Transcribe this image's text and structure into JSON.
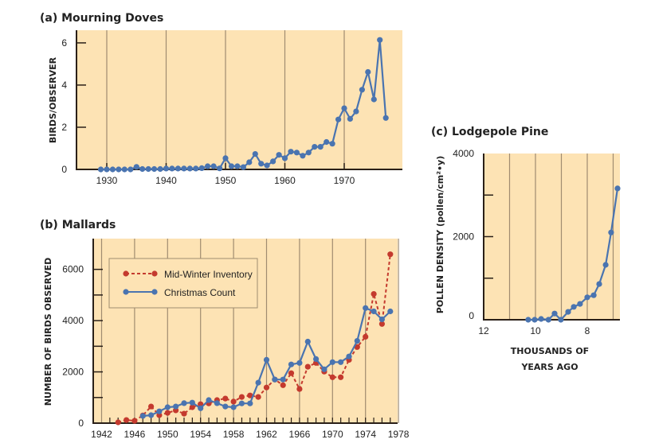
{
  "colors": {
    "background": "#FDE3B4",
    "gridline": "#A08C70",
    "axis": "#2a2018",
    "blue": "#4A74B0",
    "red": "#C43A2E"
  },
  "chart_data": [
    {
      "id": "a",
      "type": "line",
      "title": "(a) Mourning Doves",
      "xlabel": "",
      "ylabel": "BIRDS/OBSERVER",
      "xlim": [
        1925,
        1980
      ],
      "ylim": [
        0,
        6.6
      ],
      "xticks": [
        1930,
        1940,
        1950,
        1960,
        1970
      ],
      "xtick_labels": [
        "1930",
        "1940",
        "1950",
        "1960",
        "1970"
      ],
      "yticks": [
        0,
        2,
        4,
        6
      ],
      "ytick_labels": [
        "0",
        "2",
        "4",
        "6"
      ],
      "grid": "vertical",
      "series": [
        {
          "name": "Mourning Doves",
          "color": "blue",
          "style": "solid",
          "x": [
            1929,
            1930,
            1931,
            1932,
            1933,
            1934,
            1935,
            1936,
            1937,
            1938,
            1939,
            1940,
            1941,
            1942,
            1943,
            1944,
            1945,
            1946,
            1947,
            1948,
            1949,
            1950,
            1951,
            1952,
            1953,
            1954,
            1955,
            1956,
            1957,
            1958,
            1959,
            1960,
            1961,
            1962,
            1963,
            1964,
            1965,
            1966,
            1967,
            1968,
            1969,
            1970,
            1971,
            1972,
            1973,
            1974,
            1975,
            1976,
            1977
          ],
          "values": [
            0,
            0,
            0,
            0,
            0,
            0,
            0.12,
            0.02,
            0.02,
            0.02,
            0.02,
            0.04,
            0.04,
            0.04,
            0.04,
            0.04,
            0.04,
            0.06,
            0.15,
            0.15,
            0.05,
            0.53,
            0.15,
            0.15,
            0.11,
            0.34,
            0.73,
            0.27,
            0.19,
            0.38,
            0.69,
            0.53,
            0.84,
            0.8,
            0.65,
            0.8,
            1.07,
            1.07,
            1.3,
            1.22,
            2.37,
            2.9,
            2.4,
            2.75,
            3.78,
            4.62,
            3.32,
            6.14,
            2.44
          ]
        }
      ]
    },
    {
      "id": "b",
      "type": "line",
      "title": "(b) Mallards",
      "xlabel": "",
      "ylabel": "NUMBER OF BIRDS OBSERVED",
      "xlim": [
        1941,
        1978
      ],
      "ylim": [
        0,
        7200
      ],
      "xticks": [
        1942,
        1946,
        1950,
        1954,
        1958,
        1962,
        1966,
        1970,
        1974,
        1978
      ],
      "xtick_labels": [
        "1942",
        "1946",
        "1950",
        "1954",
        "1958",
        "1962",
        "1966",
        "1970",
        "1974",
        "1978"
      ],
      "yticks": [
        0,
        2000,
        4000,
        6000
      ],
      "ytick_labels": [
        "0",
        "2000",
        "4000",
        "6000"
      ],
      "grid": "vertical",
      "legend": "top-left",
      "series": [
        {
          "name": "Mid-Winter Inventory",
          "color": "red",
          "style": "dashed",
          "x": [
            1944,
            1945,
            1946,
            1947,
            1948,
            1949,
            1950,
            1951,
            1952,
            1953,
            1954,
            1955,
            1956,
            1957,
            1958,
            1959,
            1960,
            1961,
            1962,
            1963,
            1964,
            1965,
            1966,
            1967,
            1968,
            1969,
            1970,
            1971,
            1972,
            1973,
            1974,
            1975,
            1976,
            1977
          ],
          "values": [
            30,
            120,
            90,
            300,
            650,
            310,
            400,
            500,
            370,
            620,
            740,
            770,
            900,
            960,
            840,
            1020,
            1080,
            1020,
            1390,
            1700,
            1480,
            1950,
            1330,
            2200,
            2350,
            2010,
            1790,
            1790,
            2470,
            2970,
            3370,
            5040,
            3870,
            6590
          ]
        },
        {
          "name": "Christmas Count",
          "color": "blue",
          "style": "solid",
          "x": [
            1947,
            1948,
            1949,
            1950,
            1951,
            1952,
            1953,
            1954,
            1955,
            1956,
            1957,
            1958,
            1959,
            1960,
            1961,
            1962,
            1963,
            1964,
            1965,
            1966,
            1967,
            1968,
            1969,
            1970,
            1971,
            1972,
            1973,
            1974,
            1975,
            1976,
            1977
          ],
          "values": [
            280,
            310,
            460,
            620,
            650,
            780,
            800,
            580,
            900,
            780,
            650,
            620,
            770,
            770,
            1580,
            2470,
            1700,
            1700,
            2290,
            2350,
            3180,
            2500,
            2100,
            2380,
            2380,
            2600,
            3210,
            4490,
            4360,
            4050,
            4360
          ]
        }
      ]
    },
    {
      "id": "c",
      "type": "line",
      "title": "(c) Lodgepole Pine",
      "xlabel_lines": [
        "THOUSANDS OF",
        "YEARS AGO"
      ],
      "ylabel": "POLLEN DENSITY (pollen/cm²•y)",
      "xlim": [
        12,
        6.75
      ],
      "ylim": [
        0,
        4000
      ],
      "xticks": [
        12,
        10,
        8
      ],
      "xtick_labels": [
        "12",
        "10",
        "8"
      ],
      "yticks": [
        0,
        2000,
        4000
      ],
      "ytick_labels": [
        "0",
        "2000",
        "4000"
      ],
      "grid": "vertical",
      "series": [
        {
          "name": "Lodgepole Pine",
          "color": "blue",
          "style": "solid",
          "x": [
            10.28,
            10.03,
            9.78,
            9.5,
            9.26,
            9.02,
            8.74,
            8.52,
            8.28,
            8.0,
            7.75,
            7.54,
            7.29,
            7.08,
            6.83
          ],
          "values": [
            0,
            0,
            20,
            0,
            150,
            0,
            190,
            310,
            380,
            540,
            590,
            860,
            1320,
            2100,
            3160
          ]
        }
      ]
    }
  ]
}
